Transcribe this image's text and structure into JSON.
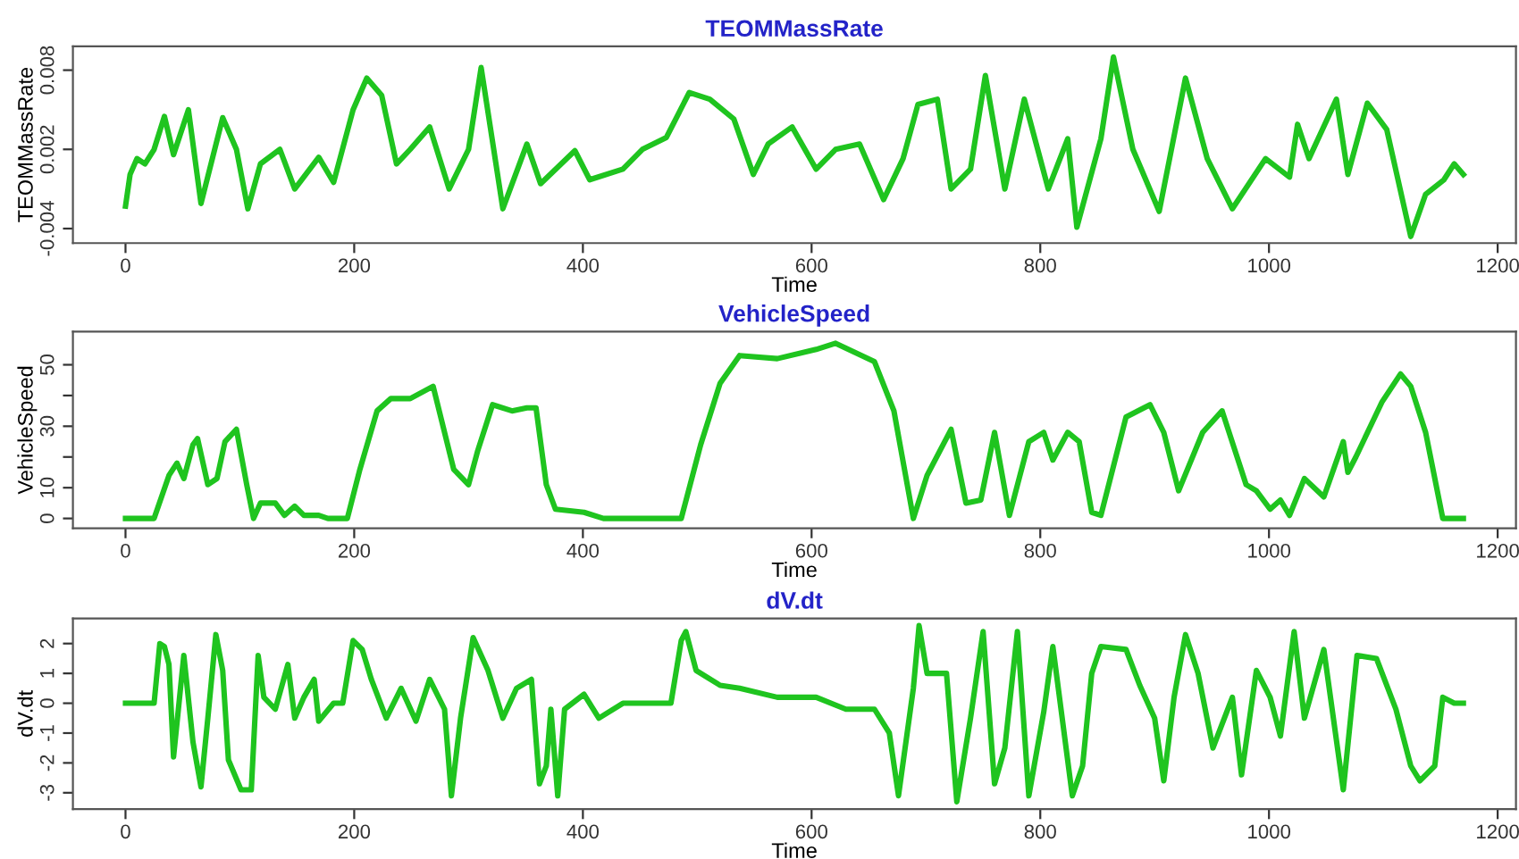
{
  "chart_data": [
    {
      "type": "line",
      "title": "TEOMMassRate",
      "xlabel": "Time",
      "ylabel": "TEOMMassRate",
      "xlim": [
        -46,
        1216
      ],
      "xticks": [
        0,
        200,
        400,
        600,
        800,
        1000,
        1200
      ],
      "ylim": [
        -0.0051,
        0.0098
      ],
      "yticks": [
        -0.004,
        0.002,
        0.008
      ],
      "grid": false,
      "marker": "none",
      "line_style": "solid",
      "series": [
        {
          "color": "#1fc41f",
          "x": [
            0,
            4,
            10,
            17,
            25,
            34,
            42,
            55,
            66,
            85,
            97,
            107,
            118,
            135,
            148,
            169,
            182,
            199,
            211,
            224,
            237,
            249,
            266,
            283,
            300,
            311,
            330,
            351,
            363,
            393,
            406,
            435,
            452,
            473,
            493,
            511,
            532,
            549,
            562,
            583,
            604,
            621,
            642,
            663,
            680,
            693,
            710,
            722,
            739,
            752,
            769,
            786,
            807,
            824,
            832,
            853,
            864,
            881,
            904,
            927,
            946,
            968,
            997,
            1018,
            1025,
            1035,
            1059,
            1069,
            1086,
            1103,
            1124,
            1137,
            1153,
            1162,
            1170
          ],
          "values": [
            -0.0023,
            0.0001,
            0.0013,
            0.0009,
            0.002,
            0.0045,
            0.0016,
            0.005,
            -0.0021,
            0.0044,
            0.002,
            -0.0025,
            0.0009,
            0.002,
            -0.001,
            0.0014,
            -0.0005,
            0.005,
            0.0074,
            0.0061,
            0.0009,
            0.002,
            0.0037,
            -0.001,
            0.002,
            0.0082,
            -0.0025,
            0.0024,
            -0.0006,
            0.0019,
            -0.0003,
            0.0005,
            0.002,
            0.0029,
            0.0063,
            0.0058,
            0.0043,
            0.0001,
            0.0024,
            0.0037,
            0.0005,
            0.002,
            0.0024,
            -0.0018,
            0.0013,
            0.0054,
            0.0058,
            -0.001,
            0.0005,
            0.0076,
            -0.001,
            0.0058,
            -0.001,
            0.0028,
            -0.0039,
            0.0028,
            0.009,
            0.002,
            -0.0027,
            0.0074,
            0.0013,
            -0.0025,
            0.0013,
            -0.0001,
            0.0039,
            0.0013,
            0.0058,
            0.0001,
            0.0055,
            0.0035,
            -0.0046,
            -0.0014,
            -0.0003,
            0.0009,
            0.0001
          ]
        }
      ]
    },
    {
      "type": "line",
      "title": "VehicleSpeed",
      "xlabel": "Time",
      "ylabel": "VehicleSpeed",
      "xlim": [
        -46,
        1216
      ],
      "xticks": [
        0,
        200,
        400,
        600,
        800,
        1000,
        1200
      ],
      "ylim": [
        -3.2,
        60.8
      ],
      "yticks": [
        0,
        10,
        {
          "value": 20,
          "label": null
        },
        30,
        {
          "value": 40,
          "label": null
        },
        50
      ],
      "grid": false,
      "marker": "none",
      "line_style": "solid",
      "series": [
        {
          "color": "#1fc41f",
          "x": [
            0,
            25,
            38,
            45,
            51,
            59,
            63,
            72,
            80,
            87,
            97,
            106,
            112,
            118,
            131,
            139,
            148,
            156,
            169,
            177,
            194,
            205,
            220,
            232,
            249,
            269,
            287,
            300,
            308,
            321,
            338,
            351,
            359,
            368,
            376,
            401,
            418,
            486,
            503,
            520,
            537,
            570,
            604,
            621,
            655,
            672,
            689,
            701,
            722,
            735,
            748,
            760,
            773,
            790,
            803,
            811,
            824,
            834,
            845,
            853,
            875,
            896,
            908,
            921,
            942,
            959,
            980,
            989,
            1001,
            1010,
            1018,
            1031,
            1048,
            1065,
            1069,
            1076,
            1099,
            1115,
            1124,
            1137,
            1152,
            1170
          ],
          "values": [
            0,
            0,
            14,
            18,
            13,
            24,
            26,
            11,
            13,
            25,
            29,
            11,
            0,
            5,
            5,
            1,
            4,
            1,
            1,
            0,
            0,
            16,
            35,
            39,
            39,
            43,
            16,
            11,
            22,
            37,
            35,
            36,
            36,
            11,
            3,
            2,
            0,
            0,
            24,
            44,
            53,
            52,
            55,
            57,
            51,
            35,
            0,
            14,
            29,
            5,
            6,
            28,
            1,
            25,
            28,
            19,
            28,
            25,
            2,
            1,
            33,
            37,
            28,
            9,
            28,
            35,
            11,
            9,
            3,
            6,
            1,
            13,
            7,
            25,
            15,
            20,
            38,
            47,
            43,
            28,
            0,
            0
          ]
        }
      ]
    },
    {
      "type": "line",
      "title": "dV.dt",
      "xlabel": "Time",
      "ylabel": "dV.dt",
      "xlim": [
        -46,
        1216
      ],
      "xticks": [
        0,
        200,
        400,
        600,
        800,
        1000,
        1200
      ],
      "ylim": [
        -3.55,
        2.84
      ],
      "yticks": [
        -3,
        -2,
        -1,
        0,
        1,
        2
      ],
      "grid": false,
      "marker": "none",
      "line_style": "solid",
      "series": [
        {
          "color": "#1fc41f",
          "x": [
            0,
            25,
            30,
            34,
            38,
            42,
            51,
            59,
            66,
            72,
            79,
            85,
            90,
            101,
            110,
            116,
            121,
            131,
            142,
            148,
            156,
            165,
            169,
            182,
            190,
            199,
            207,
            215,
            228,
            241,
            254,
            266,
            279,
            285,
            293,
            304,
            317,
            330,
            342,
            355,
            362,
            368,
            372,
            378,
            384,
            401,
            414,
            435,
            477,
            486,
            490,
            499,
            520,
            537,
            570,
            604,
            630,
            655,
            668,
            676,
            689,
            694,
            701,
            718,
            727,
            739,
            750,
            760,
            769,
            780,
            790,
            803,
            811,
            828,
            837,
            845,
            853,
            875,
            887,
            900,
            908,
            917,
            927,
            938,
            951,
            968,
            976,
            989,
            1001,
            1010,
            1022,
            1031,
            1048,
            1065,
            1077,
            1094,
            1111,
            1124,
            1132,
            1145,
            1152,
            1162,
            1170
          ],
          "values": [
            0,
            0,
            2.0,
            1.9,
            1.3,
            -1.8,
            1.6,
            -1.3,
            -2.8,
            -0.5,
            2.3,
            1.1,
            -1.9,
            -2.9,
            -2.9,
            1.6,
            0.2,
            -0.2,
            1.3,
            -0.5,
            0.2,
            0.8,
            -0.6,
            0,
            0,
            2.1,
            1.8,
            0.8,
            -0.5,
            0.5,
            -0.6,
            0.8,
            -0.2,
            -3.1,
            -0.5,
            2.2,
            1.1,
            -0.5,
            0.5,
            0.8,
            -2.7,
            -2.1,
            -0.2,
            -3.1,
            -0.2,
            0.3,
            -0.5,
            0,
            0,
            2.1,
            2.4,
            1.1,
            0.6,
            0.5,
            0.2,
            0.2,
            -0.2,
            -0.2,
            -1.0,
            -3.1,
            0.5,
            2.6,
            1.0,
            1.0,
            -3.3,
            -0.5,
            2.4,
            -2.7,
            -1.5,
            2.4,
            -3.1,
            -0.3,
            1.9,
            -3.1,
            -2.1,
            1.0,
            1.9,
            1.8,
            0.6,
            -0.5,
            -2.6,
            0.2,
            2.3,
            1.0,
            -1.5,
            0.2,
            -2.4,
            1.1,
            0.2,
            -1.1,
            2.4,
            -0.5,
            1.8,
            -2.9,
            1.6,
            1.5,
            -0.2,
            -2.1,
            -2.6,
            -2.1,
            0.2,
            0,
            0
          ]
        }
      ]
    }
  ]
}
